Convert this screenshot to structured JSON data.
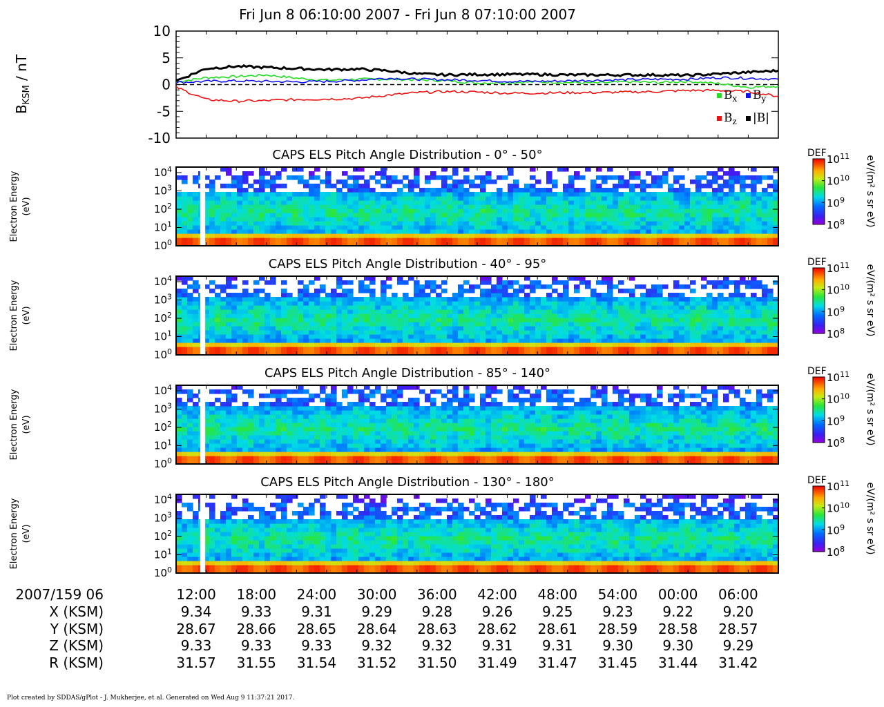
{
  "title": "Fri Jun 8 06:10:00 2007 - Fri Jun 8 07:10:00 2007",
  "chart_data": [
    {
      "type": "line",
      "ylabel_main": "B",
      "ylabel_sub": "KSM",
      "ylabel_unit": " / nT",
      "ylim": [
        -10,
        10
      ],
      "yticks": [
        -10,
        -5,
        0,
        5,
        10
      ],
      "x_minutes": [
        0,
        3,
        6,
        9,
        12,
        15,
        18,
        21,
        24,
        27,
        30,
        33,
        36,
        39,
        42,
        45,
        48,
        51,
        54,
        57,
        60
      ],
      "zero_line": "dashed",
      "legend": [
        {
          "key": "Bx",
          "base": "B",
          "sub": "x",
          "color": "#22dd22"
        },
        {
          "key": "By",
          "base": "B",
          "sub": "y",
          "color": "#1010ee"
        },
        {
          "key": "Bz",
          "base": "B",
          "sub": "z",
          "color": "#ee1111"
        },
        {
          "key": "Bmag",
          "base": "|B|",
          "sub": "",
          "color": "#000000"
        }
      ],
      "series": [
        {
          "name": "Bx",
          "color": "#22dd22",
          "values": [
            0.5,
            1.3,
            1.5,
            1.8,
            1.2,
            0.8,
            1.0,
            1.0,
            0.9,
            0.7,
            0.3,
            0.4,
            0.5,
            0.4,
            0.3,
            0.5,
            0.4,
            0.6,
            0.2,
            -0.5,
            -0.3
          ]
        },
        {
          "name": "By",
          "color": "#1010ee",
          "values": [
            0.4,
            0.6,
            0.7,
            0.6,
            0.5,
            0.6,
            0.8,
            1.2,
            1.0,
            0.9,
            0.8,
            0.6,
            0.6,
            0.7,
            0.8,
            0.9,
            1.0,
            1.0,
            1.3,
            1.2,
            1.0
          ]
        },
        {
          "name": "Bz",
          "color": "#ee1111",
          "values": [
            -0.5,
            -2.8,
            -3.1,
            -3.0,
            -2.8,
            -2.7,
            -2.6,
            -2.0,
            -1.5,
            -1.3,
            -1.4,
            -1.6,
            -1.6,
            -1.5,
            -1.5,
            -1.4,
            -1.3,
            -1.1,
            -1.1,
            -1.3,
            -2.2
          ]
        },
        {
          "name": "|B|",
          "color": "#000000",
          "values": [
            0.7,
            3.0,
            3.4,
            3.2,
            3.0,
            2.8,
            2.9,
            2.6,
            2.0,
            1.8,
            1.9,
            1.9,
            1.9,
            1.8,
            1.8,
            1.8,
            1.8,
            1.7,
            2.0,
            2.3,
            2.6
          ]
        }
      ]
    },
    {
      "type": "heatmap",
      "title": "CAPS ELS Pitch Angle Distribution - 0° - 50°",
      "ylabel": "Electron Energy",
      "yunit": "(eV)",
      "yscale": "log",
      "ylim": [
        1,
        20000
      ],
      "yticks": [
        1,
        10,
        100,
        1000,
        10000
      ],
      "colorbar": {
        "label": "DEF",
        "unit": "eV/(m² s sr eV)",
        "range": [
          100000000.0,
          100000000000.0
        ],
        "ticks": [
          100000000.0,
          1000000000.0,
          10000000000.0,
          100000000000.0
        ]
      },
      "core_energy_range_eV": [
        5,
        1000
      ],
      "data_gaps_minutes": [
        2.4,
        2.9
      ]
    },
    {
      "type": "heatmap",
      "title": "CAPS ELS Pitch Angle Distribution - 40° - 95°",
      "ylabel": "Electron Energy",
      "yunit": "(eV)",
      "yscale": "log",
      "ylim": [
        1,
        20000
      ],
      "yticks": [
        1,
        10,
        100,
        1000,
        10000
      ],
      "colorbar": {
        "label": "DEF",
        "unit": "eV/(m² s sr eV)",
        "range": [
          100000000.0,
          100000000000.0
        ],
        "ticks": [
          100000000.0,
          1000000000.0,
          10000000000.0,
          100000000000.0
        ]
      },
      "core_energy_range_eV": [
        5,
        1500
      ],
      "data_gaps_minutes": [
        2.4,
        2.9
      ]
    },
    {
      "type": "heatmap",
      "title": "CAPS ELS Pitch Angle Distribution - 85° - 140°",
      "ylabel": "Electron Energy",
      "yunit": "(eV)",
      "yscale": "log",
      "ylim": [
        1,
        20000
      ],
      "yticks": [
        1,
        10,
        100,
        1000,
        10000
      ],
      "colorbar": {
        "label": "DEF",
        "unit": "eV/(m² s sr eV)",
        "range": [
          100000000.0,
          100000000000.0
        ],
        "ticks": [
          100000000.0,
          1000000000.0,
          10000000000.0,
          100000000000.0
        ]
      },
      "core_energy_range_eV": [
        5,
        1500
      ],
      "data_gaps_minutes": [
        2.4,
        2.9
      ]
    },
    {
      "type": "heatmap",
      "title": "CAPS ELS Pitch Angle Distribution - 130° - 180°",
      "ylabel": "Electron Energy",
      "yunit": "(eV)",
      "yscale": "log",
      "ylim": [
        1,
        20000
      ],
      "yticks": [
        1,
        10,
        100,
        1000,
        10000
      ],
      "colorbar": {
        "label": "DEF",
        "unit": "eV/(m² s sr eV)",
        "range": [
          100000000.0,
          100000000000.0
        ],
        "ticks": [
          100000000.0,
          1000000000.0,
          10000000000.0,
          100000000000.0
        ]
      },
      "core_energy_range_eV": [
        5,
        1000
      ],
      "data_gaps_minutes": [
        2.4,
        2.9
      ]
    }
  ],
  "time_axis": {
    "xlim_minutes": [
      0,
      60
    ],
    "first_label_minute": 2,
    "label_step_minutes": 6,
    "minor_step_minutes": 3
  },
  "ephemeris": {
    "header": "2007/159 06",
    "times": [
      "12:00",
      "18:00",
      "24:00",
      "30:00",
      "36:00",
      "42:00",
      "48:00",
      "54:00",
      "00:00",
      "06:00"
    ],
    "rows": [
      {
        "label": "X (KSM)",
        "values": [
          "9.34",
          "9.33",
          "9.31",
          "9.29",
          "9.28",
          "9.26",
          "9.25",
          "9.23",
          "9.22",
          "9.20"
        ]
      },
      {
        "label": "Y (KSM)",
        "values": [
          "28.67",
          "28.66",
          "28.65",
          "28.64",
          "28.63",
          "28.62",
          "28.61",
          "28.59",
          "28.58",
          "28.57"
        ]
      },
      {
        "label": "Z (KSM)",
        "values": [
          "9.33",
          "9.33",
          "9.33",
          "9.32",
          "9.32",
          "9.31",
          "9.31",
          "9.30",
          "9.30",
          "9.29"
        ]
      },
      {
        "label": "R (KSM)",
        "values": [
          "31.57",
          "31.55",
          "31.54",
          "31.52",
          "31.50",
          "31.49",
          "31.47",
          "31.45",
          "31.44",
          "31.42"
        ]
      }
    ]
  },
  "footer": "Plot created by SDDAS/gPlot - J. Mukherjee, et al.  Generated on Wed Aug 9 11:37:21 2017."
}
